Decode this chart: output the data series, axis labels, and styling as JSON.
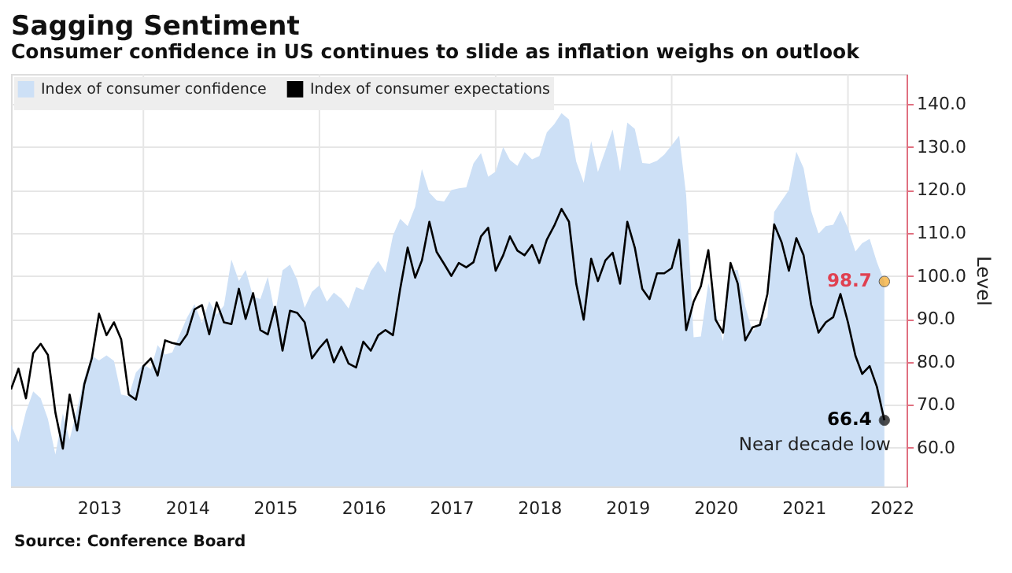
{
  "chart_data": {
    "type": "line",
    "title": "Sagging Sentiment",
    "subtitle": "Consumer confidence in US continues to slide as inflation weighs on outlook",
    "ylabel": "Level",
    "x": [
      "2012-07",
      "2012-08",
      "2012-09",
      "2012-10",
      "2012-11",
      "2012-12",
      "2013-01",
      "2013-02",
      "2013-03",
      "2013-04",
      "2013-05",
      "2013-06",
      "2013-07",
      "2013-08",
      "2013-09",
      "2013-10",
      "2013-11",
      "2013-12",
      "2014-01",
      "2014-02",
      "2014-03",
      "2014-04",
      "2014-05",
      "2014-06",
      "2014-07",
      "2014-08",
      "2014-09",
      "2014-10",
      "2014-11",
      "2014-12",
      "2015-01",
      "2015-02",
      "2015-03",
      "2015-04",
      "2015-05",
      "2015-06",
      "2015-07",
      "2015-08",
      "2015-09",
      "2015-10",
      "2015-11",
      "2015-12",
      "2016-01",
      "2016-02",
      "2016-03",
      "2016-04",
      "2016-05",
      "2016-06",
      "2016-07",
      "2016-08",
      "2016-09",
      "2016-10",
      "2016-11",
      "2016-12",
      "2017-01",
      "2017-02",
      "2017-03",
      "2017-04",
      "2017-05",
      "2017-06",
      "2017-07",
      "2017-08",
      "2017-09",
      "2017-10",
      "2017-11",
      "2017-12",
      "2018-01",
      "2018-02",
      "2018-03",
      "2018-04",
      "2018-05",
      "2018-06",
      "2018-07",
      "2018-08",
      "2018-09",
      "2018-10",
      "2018-11",
      "2018-12",
      "2019-01",
      "2019-02",
      "2019-03",
      "2019-04",
      "2019-05",
      "2019-06",
      "2019-07",
      "2019-08",
      "2019-09",
      "2019-10",
      "2019-11",
      "2019-12",
      "2020-01",
      "2020-02",
      "2020-03",
      "2020-04",
      "2020-05",
      "2020-06",
      "2020-07",
      "2020-08",
      "2020-09",
      "2020-10",
      "2020-11",
      "2020-12",
      "2021-01",
      "2021-02",
      "2021-03",
      "2021-04",
      "2021-05",
      "2021-06",
      "2021-07",
      "2021-08",
      "2021-09",
      "2021-10",
      "2021-11",
      "2021-12",
      "2022-01",
      "2022-02",
      "2022-03",
      "2022-04",
      "2022-05",
      "2022-06"
    ],
    "series": [
      {
        "name": "Index of consumer confidence",
        "type": "area",
        "color": "#cde0f6",
        "values": [
          65.4,
          61.3,
          68.4,
          73.1,
          71.5,
          66.7,
          58.4,
          68.0,
          61.9,
          69.0,
          76.2,
          81.4,
          80.3,
          81.5,
          80.2,
          72.4,
          72.0,
          77.5,
          79.4,
          78.3,
          83.9,
          81.7,
          82.2,
          86.4,
          90.3,
          93.4,
          89.0,
          94.1,
          91.0,
          93.1,
          103.8,
          98.8,
          101.4,
          95.2,
          94.6,
          99.8,
          91.0,
          101.3,
          102.6,
          99.1,
          92.6,
          96.3,
          97.8,
          94.0,
          96.1,
          94.7,
          92.4,
          97.4,
          96.7,
          101.1,
          103.5,
          100.8,
          109.4,
          113.3,
          111.6,
          116.1,
          124.9,
          119.4,
          117.6,
          117.3,
          120.0,
          120.4,
          120.6,
          126.2,
          128.6,
          123.1,
          124.3,
          130.0,
          127.0,
          125.6,
          128.8,
          127.1,
          127.9,
          133.4,
          135.3,
          137.9,
          136.4,
          126.6,
          121.7,
          131.4,
          124.2,
          129.2,
          134.1,
          124.3,
          135.7,
          134.2,
          126.3,
          126.1,
          126.8,
          128.2,
          130.4,
          132.6,
          118.8,
          85.7,
          85.9,
          98.3,
          91.7,
          84.8,
          101.3,
          101.4,
          92.9,
          87.1,
          88.9,
          90.4,
          114.9,
          117.5,
          120.0,
          128.9,
          125.1,
          115.2,
          109.8,
          111.6,
          111.9,
          115.2,
          111.1,
          105.7,
          107.6,
          108.6,
          103.2,
          98.7
        ],
        "value_labels": [
          null,
          null,
          null,
          null,
          null,
          null,
          null,
          null,
          null,
          null,
          null,
          null,
          null,
          null,
          null,
          null,
          null,
          null,
          null,
          null,
          null,
          null,
          null,
          null,
          null,
          null,
          null,
          null,
          null,
          null,
          null,
          null,
          null,
          null,
          null,
          null,
          null,
          null,
          null,
          null,
          null,
          null,
          null,
          null,
          null,
          null,
          null,
          null,
          null,
          null,
          null,
          null,
          null,
          null,
          null,
          null,
          null,
          null,
          null,
          null,
          null,
          null,
          null,
          null,
          null,
          null,
          null,
          null,
          null,
          null,
          null,
          null,
          null,
          null,
          null,
          null,
          null,
          null,
          null,
          null,
          null,
          null,
          null,
          null,
          null,
          null,
          null,
          null,
          null,
          null,
          null,
          null,
          null,
          null,
          null,
          null,
          null,
          null,
          null,
          null,
          null,
          null,
          null,
          null,
          null,
          null,
          null,
          null,
          null,
          null,
          null,
          null,
          null,
          null,
          null,
          null,
          null,
          null,
          null,
          "98.7"
        ]
      },
      {
        "name": "Index of consumer expectations",
        "color": "#000000",
        "values": [
          73.6,
          78.4,
          71.5,
          82.0,
          84.2,
          81.6,
          68.2,
          59.8,
          72.4,
          64.0,
          74.8,
          80.8,
          91.2,
          86.2,
          89.2,
          85.2,
          72.4,
          71.2,
          79.0,
          80.8,
          76.8,
          85.0,
          84.4,
          84.0,
          86.4,
          92.2,
          93.2,
          86.4,
          93.8,
          89.2,
          88.8,
          97.0,
          90.0,
          96.0,
          87.4,
          86.4,
          92.8,
          82.6,
          91.9,
          91.4,
          89.2,
          80.8,
          83.2,
          85.2,
          79.9,
          83.5,
          79.6,
          78.7,
          84.7,
          82.6,
          86.2,
          87.4,
          86.2,
          97.0,
          106.6,
          99.6,
          103.6,
          112.6,
          105.6,
          102.8,
          100.0,
          103.0,
          102.0,
          103.2,
          109.2,
          111.2,
          101.2,
          104.8,
          109.2,
          105.9,
          104.8,
          107.2,
          103.0,
          108.4,
          111.7,
          115.6,
          112.6,
          98.2,
          89.8,
          104.0,
          98.8,
          103.6,
          105.4,
          98.2,
          112.6,
          106.6,
          97.0,
          94.6,
          100.6,
          100.6,
          101.8,
          108.4,
          87.4,
          94.0,
          97.6,
          106.0,
          89.8,
          86.8,
          103.0,
          98.2,
          85.0,
          88.0,
          88.6,
          95.8,
          112.0,
          107.8,
          101.2,
          108.8,
          104.8,
          93.4,
          86.8,
          89.2,
          90.4,
          95.8,
          89.2,
          81.4,
          77.2,
          79.0,
          74.2,
          66.4
        ],
        "value_labels": [
          null,
          null,
          null,
          null,
          null,
          null,
          null,
          null,
          null,
          null,
          null,
          null,
          null,
          null,
          null,
          null,
          null,
          null,
          null,
          null,
          null,
          null,
          null,
          null,
          null,
          null,
          null,
          null,
          null,
          null,
          null,
          null,
          null,
          null,
          null,
          null,
          null,
          null,
          null,
          null,
          null,
          null,
          null,
          null,
          null,
          null,
          null,
          null,
          null,
          null,
          null,
          null,
          null,
          null,
          null,
          null,
          null,
          null,
          null,
          null,
          null,
          null,
          null,
          null,
          null,
          null,
          null,
          null,
          null,
          null,
          null,
          null,
          null,
          null,
          null,
          null,
          null,
          null,
          null,
          null,
          null,
          null,
          null,
          null,
          null,
          null,
          null,
          null,
          null,
          null,
          null,
          null,
          null,
          null,
          null,
          null,
          null,
          null,
          null,
          null,
          null,
          null,
          null,
          null,
          null,
          null,
          null,
          null,
          null,
          null,
          null,
          null,
          null,
          null,
          null,
          null,
          null,
          null,
          null,
          "66.4"
        ]
      }
    ],
    "xlim": [
      "2012-07",
      "2022-09"
    ],
    "xticks": [
      {
        "value": "2013-07",
        "label": "2013"
      },
      {
        "value": "2014-01",
        "label": null
      },
      {
        "value": "2014-07",
        "label": "2014"
      },
      {
        "value": "2015-07",
        "label": "2015"
      },
      {
        "value": "2016-01",
        "label": null
      },
      {
        "value": "2016-07",
        "label": "2016"
      },
      {
        "value": "2017-07",
        "label": "2017"
      },
      {
        "value": "2018-01",
        "label": null
      },
      {
        "value": "2018-07",
        "label": "2018"
      },
      {
        "value": "2019-07",
        "label": "2019"
      },
      {
        "value": "2020-01",
        "label": null
      },
      {
        "value": "2020-07",
        "label": "2020"
      },
      {
        "value": "2021-07",
        "label": "2021"
      },
      {
        "value": "2022-01",
        "label": null
      },
      {
        "value": "2022-07",
        "label": "2022"
      }
    ],
    "ylim": [
      51,
      147
    ],
    "yticks": [
      {
        "value": 60,
        "label": "60.0"
      },
      {
        "value": 70,
        "label": "70.0"
      },
      {
        "value": 80,
        "label": "80.0"
      },
      {
        "value": 90,
        "label": "90.0"
      },
      {
        "value": 100,
        "label": "100.0"
      },
      {
        "value": 110,
        "label": "110.0"
      },
      {
        "value": 120,
        "label": "120.0"
      },
      {
        "value": 130,
        "label": "130.0"
      },
      {
        "value": 140,
        "label": "140.0"
      }
    ],
    "grid": true,
    "legend": "top left",
    "annotations": [
      {
        "text": "Near decade low",
        "x": "2022-06",
        "y": 66.4
      },
      "Source: Conference Board"
    ]
  }
}
